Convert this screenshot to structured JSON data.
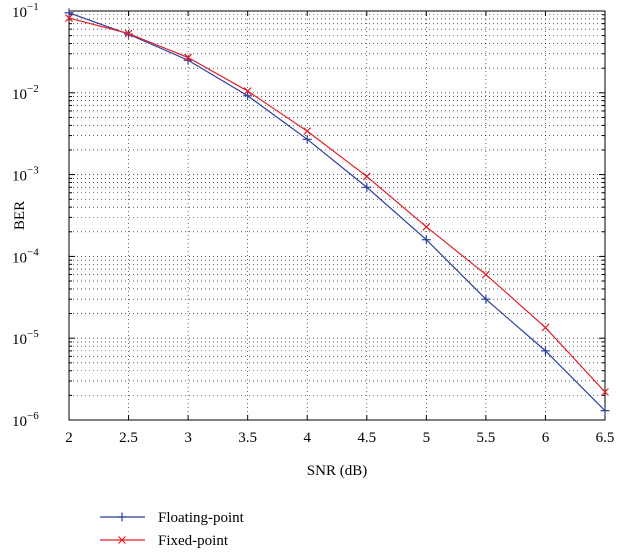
{
  "chart_data": {
    "type": "line",
    "title": "",
    "xlabel": "SNR (dB)",
    "ylabel": "BER",
    "xlim": [
      2,
      6.5
    ],
    "ylim": [
      1e-06,
      0.1
    ],
    "yscale": "log",
    "grid": true,
    "legend_position": "bottom-left, below plot",
    "x_ticks": [
      "2",
      "2.5",
      "3",
      "3.5",
      "4",
      "4.5",
      "5",
      "5.5",
      "6",
      "6.5"
    ],
    "y_ticks": [
      {
        "base": "10",
        "exp": "−1",
        "value": 0.1
      },
      {
        "base": "10",
        "exp": "−2",
        "value": 0.01
      },
      {
        "base": "10",
        "exp": "−3",
        "value": 0.001
      },
      {
        "base": "10",
        "exp": "−4",
        "value": 0.0001
      },
      {
        "base": "10",
        "exp": "−5",
        "value": 1e-05
      },
      {
        "base": "10",
        "exp": "−6",
        "value": 1e-06
      }
    ],
    "x": [
      2,
      2.5,
      3,
      3.5,
      4,
      4.5,
      5,
      5.5,
      6,
      6.5
    ],
    "series": [
      {
        "name": "Floating-point",
        "color": "#2b3f9e",
        "marker": "plus",
        "values": [
          0.095,
          0.052,
          0.025,
          0.0092,
          0.0027,
          0.0007,
          0.00016,
          3e-05,
          7e-06,
          1.3e-06
        ]
      },
      {
        "name": "Fixed-point",
        "color": "#e0202a",
        "marker": "x",
        "values": [
          0.082,
          0.053,
          0.027,
          0.0105,
          0.0034,
          0.00095,
          0.00023,
          6e-05,
          1.35e-05,
          2.2e-06
        ]
      }
    ]
  }
}
